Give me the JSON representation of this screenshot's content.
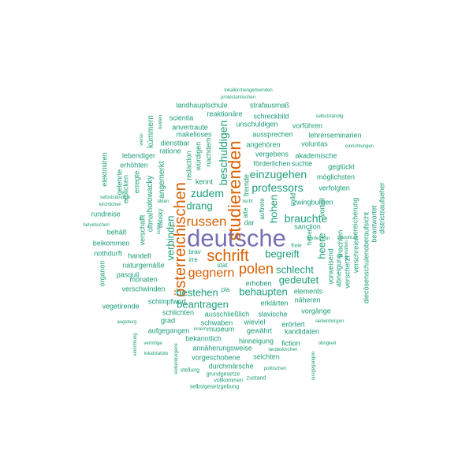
{
  "word_cloud": {
    "colors": {
      "large": "#d95f02",
      "top": "#7570b3",
      "regular": "#1b9e77"
    },
    "words": [
      {
        "text": "deutsche",
        "color": "top"
      },
      {
        "text": "studierenden",
        "color": "large"
      },
      {
        "text": "österreichischen",
        "color": "large"
      },
      {
        "text": "schrift",
        "color": "large"
      },
      {
        "text": "polen",
        "color": "large"
      },
      {
        "text": "russen",
        "color": "large"
      },
      {
        "text": "gegnern",
        "color": "large"
      },
      {
        "text": "professors",
        "color": "regular"
      },
      {
        "text": "einzugehen",
        "color": "regular"
      },
      {
        "text": "brauchte",
        "color": "regular"
      },
      {
        "text": "schlecht",
        "color": "regular"
      },
      {
        "text": "beschuldigen",
        "color": "regular"
      },
      {
        "text": "zudem",
        "color": "regular"
      },
      {
        "text": "drang",
        "color": "regular"
      },
      {
        "text": "verbinden",
        "color": "regular"
      },
      {
        "text": "begreift",
        "color": "regular"
      },
      {
        "text": "gedeutet",
        "color": "regular"
      },
      {
        "text": "bestehen",
        "color": "regular"
      },
      {
        "text": "behaupten",
        "color": "regular"
      },
      {
        "text": "beantragen",
        "color": "regular"
      },
      {
        "text": "hohen",
        "color": "regular"
      },
      {
        "text": "heere",
        "color": "regular"
      },
      {
        "text": "landhauptschule",
        "color": "regular"
      },
      {
        "text": "strafausmaß",
        "color": "regular"
      },
      {
        "text": "reaktionäre",
        "color": "regular"
      },
      {
        "text": "schreckbild",
        "color": "regular"
      },
      {
        "text": "scientia",
        "color": "regular"
      },
      {
        "text": "unschuldigen",
        "color": "regular"
      },
      {
        "text": "vorführen",
        "color": "regular"
      },
      {
        "text": "anvertraute",
        "color": "regular"
      },
      {
        "text": "aussprechen",
        "color": "regular"
      },
      {
        "text": "lehrerseminarien",
        "color": "regular"
      },
      {
        "text": "makelloses",
        "color": "regular"
      },
      {
        "text": "voluntas",
        "color": "regular"
      },
      {
        "text": "dienstbar",
        "color": "regular"
      },
      {
        "text": "angehören",
        "color": "regular"
      },
      {
        "text": "ratione",
        "color": "regular"
      },
      {
        "text": "akademische",
        "color": "regular"
      },
      {
        "text": "vergebens",
        "color": "regular"
      },
      {
        "text": "förderlichen",
        "color": "regular"
      },
      {
        "text": "suchte",
        "color": "regular"
      },
      {
        "text": "geglückt",
        "color": "regular"
      },
      {
        "text": "möglichsten",
        "color": "regular"
      },
      {
        "text": "verfolgten",
        "color": "regular"
      },
      {
        "text": "zwingburgen",
        "color": "regular"
      },
      {
        "text": "sanction",
        "color": "regular"
      },
      {
        "text": "lebendiger",
        "color": "regular"
      },
      {
        "text": "erhöhten",
        "color": "regular"
      },
      {
        "text": "rundreise",
        "color": "regular"
      },
      {
        "text": "beikommen",
        "color": "regular"
      },
      {
        "text": "nothdurft",
        "color": "regular"
      },
      {
        "text": "handelt",
        "color": "regular"
      },
      {
        "text": "naturgemäße",
        "color": "regular"
      },
      {
        "text": "monaten",
        "color": "regular"
      },
      {
        "text": "verschwinden",
        "color": "regular"
      },
      {
        "text": "vegetirende",
        "color": "regular"
      },
      {
        "text": "schimpfwort",
        "color": "regular"
      },
      {
        "text": "schlichten",
        "color": "regular"
      },
      {
        "text": "ausschließlich",
        "color": "regular"
      },
      {
        "text": "slavische",
        "color": "regular"
      },
      {
        "text": "schwaben",
        "color": "regular"
      },
      {
        "text": "wieviel",
        "color": "regular"
      },
      {
        "text": "erörtert",
        "color": "regular"
      },
      {
        "text": "aufgegangen",
        "color": "regular"
      },
      {
        "text": "museum",
        "color": "regular"
      },
      {
        "text": "gewährt",
        "color": "regular"
      },
      {
        "text": "kandidaten",
        "color": "regular"
      },
      {
        "text": "bekanntlich",
        "color": "regular"
      },
      {
        "text": "hinneigung",
        "color": "regular"
      },
      {
        "text": "fiction",
        "color": "regular"
      },
      {
        "text": "annäherungsweise",
        "color": "regular"
      },
      {
        "text": "vorgeschobene",
        "color": "regular"
      },
      {
        "text": "seichten",
        "color": "regular"
      },
      {
        "text": "durchmärsche",
        "color": "regular"
      },
      {
        "text": "erhoben",
        "color": "regular"
      },
      {
        "text": "erklärten",
        "color": "regular"
      },
      {
        "text": "elements",
        "color": "regular"
      },
      {
        "text": "näheren",
        "color": "regular"
      },
      {
        "text": "vorgänge",
        "color": "regular"
      },
      {
        "text": "grad",
        "color": "regular"
      },
      {
        "text": "pasquil",
        "color": "regular"
      },
      {
        "text": "behält",
        "color": "regular"
      },
      {
        "text": "irre",
        "color": "regular"
      },
      {
        "text": "brav",
        "color": "regular"
      },
      {
        "text": "stat",
        "color": "regular"
      },
      {
        "text": "pla",
        "color": "regular"
      },
      {
        "text": "kennt",
        "color": "regular"
      },
      {
        "text": "mild",
        "color": "regular"
      },
      {
        "text": "freie",
        "color": "regular"
      },
      {
        "text": "dar",
        "color": "regular"
      },
      {
        "text": "innern",
        "color": "regular"
      },
      {
        "text": "stellung",
        "color": "regular"
      },
      {
        "text": "grundgesetze",
        "color": "regular"
      },
      {
        "text": "zustand",
        "color": "regular"
      },
      {
        "text": "vollkommen",
        "color": "regular"
      },
      {
        "text": "selbstgesetzgebung",
        "color": "regular"
      },
      {
        "text": "lokalstatute",
        "color": "regular"
      },
      {
        "text": "politischen",
        "color": "regular"
      },
      {
        "text": "landeskirchen",
        "color": "regular"
      },
      {
        "text": "obrigkeit",
        "color": "regular"
      },
      {
        "text": "siebenbürgen",
        "color": "regular"
      },
      {
        "text": "augsburg",
        "color": "regular"
      },
      {
        "text": "vermöge",
        "color": "regular"
      },
      {
        "text": "lokalkirchengemeinden",
        "color": "regular"
      },
      {
        "text": "protestantischen",
        "color": "regular"
      },
      {
        "text": "selbstständig",
        "color": "regular"
      },
      {
        "text": "einrichtungen",
        "color": "regular"
      },
      {
        "text": "konfession",
        "color": "regular"
      },
      {
        "text": "sowohl",
        "color": "regular"
      },
      {
        "text": "selbstständige",
        "color": "regular"
      },
      {
        "text": "kirchlichen",
        "color": "regular"
      },
      {
        "text": "helvetischen",
        "color": "regular"
      },
      {
        "text": "übten",
        "color": "regular"
      },
      {
        "text": "recht",
        "color": "regular"
      },
      {
        "text": "weise",
        "color": "regular"
      },
      {
        "text": "beiden",
        "color": "regular"
      },
      {
        "text": "kümmern",
        "color": "regular"
      },
      {
        "text": "holowacky",
        "color": "regular"
      },
      {
        "text": "angemerkt",
        "color": "regular"
      },
      {
        "text": "erblicken",
        "color": "regular"
      },
      {
        "text": "elektrisiren",
        "color": "regular"
      },
      {
        "text": "gelehrte",
        "color": "regular"
      },
      {
        "text": "erregte",
        "color": "regular"
      },
      {
        "text": "oftmal",
        "color": "regular"
      },
      {
        "text": "verschafft",
        "color": "regular"
      },
      {
        "text": "organon",
        "color": "regular"
      },
      {
        "text": "redaction",
        "color": "regular"
      },
      {
        "text": "würdigen",
        "color": "regular"
      },
      {
        "text": "nachdem",
        "color": "regular"
      },
      {
        "text": "fremde",
        "color": "regular"
      },
      {
        "text": "alte",
        "color": "regular"
      },
      {
        "text": "auftrete",
        "color": "regular"
      },
      {
        "text": "vorweisend",
        "color": "regular"
      },
      {
        "text": "abneigung",
        "color": "regular"
      },
      {
        "text": "verscherzt",
        "color": "regular"
      },
      {
        "text": "machten",
        "color": "regular"
      },
      {
        "text": "verwalten",
        "color": "regular"
      },
      {
        "text": "vorteil",
        "color": "regular"
      },
      {
        "text": "verschreien",
        "color": "regular"
      },
      {
        "text": "bereicherung",
        "color": "regular"
      },
      {
        "text": "beantwortet",
        "color": "regular"
      },
      {
        "text": "districtsaufseher",
        "color": "regular"
      },
      {
        "text": "diecösenschulenoberaufsicht",
        "color": "regular"
      },
      {
        "text": "heben",
        "color": "regular"
      },
      {
        "text": "vábský",
        "color": "regular"
      },
      {
        "text": "scher",
        "color": "regular"
      },
      {
        "text": "ausgegangen",
        "color": "regular"
      },
      {
        "text": "siebenbürgens",
        "color": "regular"
      },
      {
        "text": "einrichtung",
        "color": "regular"
      }
    ]
  }
}
